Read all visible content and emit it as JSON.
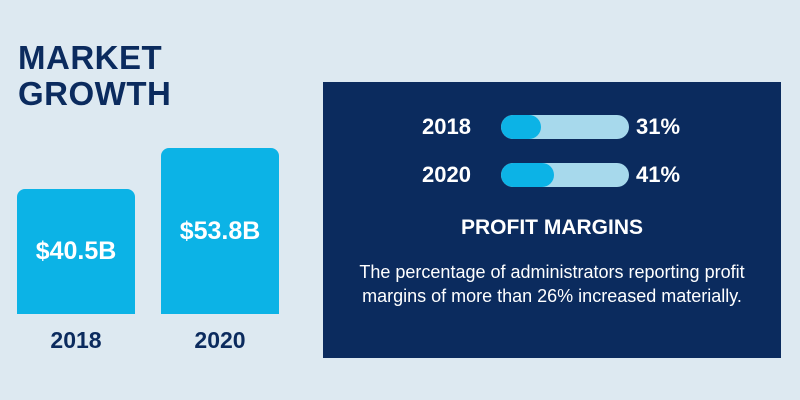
{
  "title": {
    "line1": "MARKET",
    "line2": "GROWTH"
  },
  "panel": {
    "heading": "PROFIT MARGINS",
    "description": "The percentage of administrators reporting profit margins of more than 26% increased materially."
  },
  "colors": {
    "background": "#dde9f1",
    "navy": "#0b2b5e",
    "bar": "#0cb3e6",
    "track": "#a7d9ec"
  },
  "chart_data": [
    {
      "type": "bar",
      "categories": [
        "2018",
        "2020"
      ],
      "values": [
        40.5,
        53.8
      ],
      "labels": [
        "$40.5B",
        "$53.8B"
      ],
      "unit": "B"
    },
    {
      "type": "bar",
      "orientation": "horizontal",
      "categories": [
        "2018",
        "2020"
      ],
      "values": [
        31,
        41
      ],
      "labels": [
        "31%",
        "41%"
      ],
      "unit": "%"
    }
  ]
}
